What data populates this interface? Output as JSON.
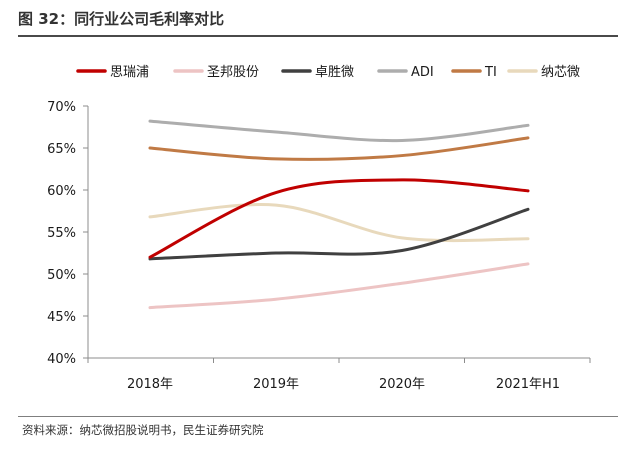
{
  "figure_title": "图 32：同行业公司毛利率对比",
  "source_note": "资料来源：纳芯微招股说明书，民生证券研究院",
  "chart_data": {
    "type": "line",
    "title": "",
    "xlabel": "",
    "ylabel": "",
    "categories": [
      "2018年",
      "2019年",
      "2020年",
      "2021年H1"
    ],
    "y_ticks": [
      "40%",
      "45%",
      "50%",
      "55%",
      "60%",
      "65%",
      "70%"
    ],
    "ylim": [
      40,
      70
    ],
    "y_unit": "%",
    "grid": false,
    "smooth": true,
    "legend_position": "top",
    "series": [
      {
        "name": "思瑞浦",
        "color": "#C00000",
        "values": [
          52.0,
          59.7,
          61.2,
          59.9
        ]
      },
      {
        "name": "圣邦股份",
        "color": "#EDC4C4",
        "values": [
          46.0,
          47.0,
          48.9,
          51.2
        ]
      },
      {
        "name": "卓胜微",
        "color": "#404040",
        "values": [
          51.8,
          52.5,
          52.8,
          57.7
        ]
      },
      {
        "name": "ADI",
        "color": "#ADADAD",
        "values": [
          68.2,
          66.9,
          65.9,
          67.7
        ]
      },
      {
        "name": "TI",
        "color": "#C07A45",
        "values": [
          65.0,
          63.7,
          64.1,
          66.2
        ]
      },
      {
        "name": "纳芯微",
        "color": "#E8D9BC",
        "values": [
          56.8,
          58.2,
          54.3,
          54.2
        ]
      }
    ]
  }
}
